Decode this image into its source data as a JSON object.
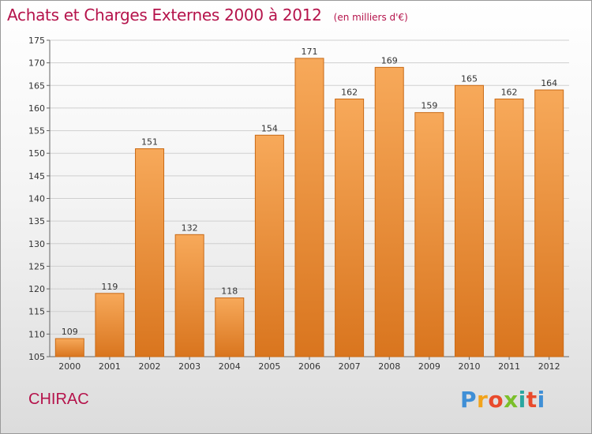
{
  "header": {
    "title": "Achats et Charges Externes 2000 à 2012",
    "subtitle": "(en milliers d'€)"
  },
  "footer": {
    "commune": "CHIRAC",
    "logo_text": "Proxiti"
  },
  "colors": {
    "title": "#b5134b",
    "bar_top": "#f7a95a",
    "bar_bottom": "#d9751e",
    "bar_stroke": "#c96a16"
  },
  "chart_data": {
    "type": "bar",
    "title": "Achats et Charges Externes 2000 à 2012",
    "subtitle": "(en milliers d'€)",
    "categories": [
      "2000",
      "2001",
      "2002",
      "2003",
      "2004",
      "2005",
      "2006",
      "2007",
      "2008",
      "2009",
      "2010",
      "2011",
      "2012"
    ],
    "values": [
      109,
      119,
      151,
      132,
      118,
      154,
      171,
      162,
      169,
      159,
      165,
      162,
      164
    ],
    "ylim": [
      105,
      175
    ],
    "yticks": [
      105,
      110,
      115,
      120,
      125,
      130,
      135,
      140,
      145,
      150,
      155,
      160,
      165,
      170,
      175
    ],
    "grid": true,
    "data_labels": true
  }
}
